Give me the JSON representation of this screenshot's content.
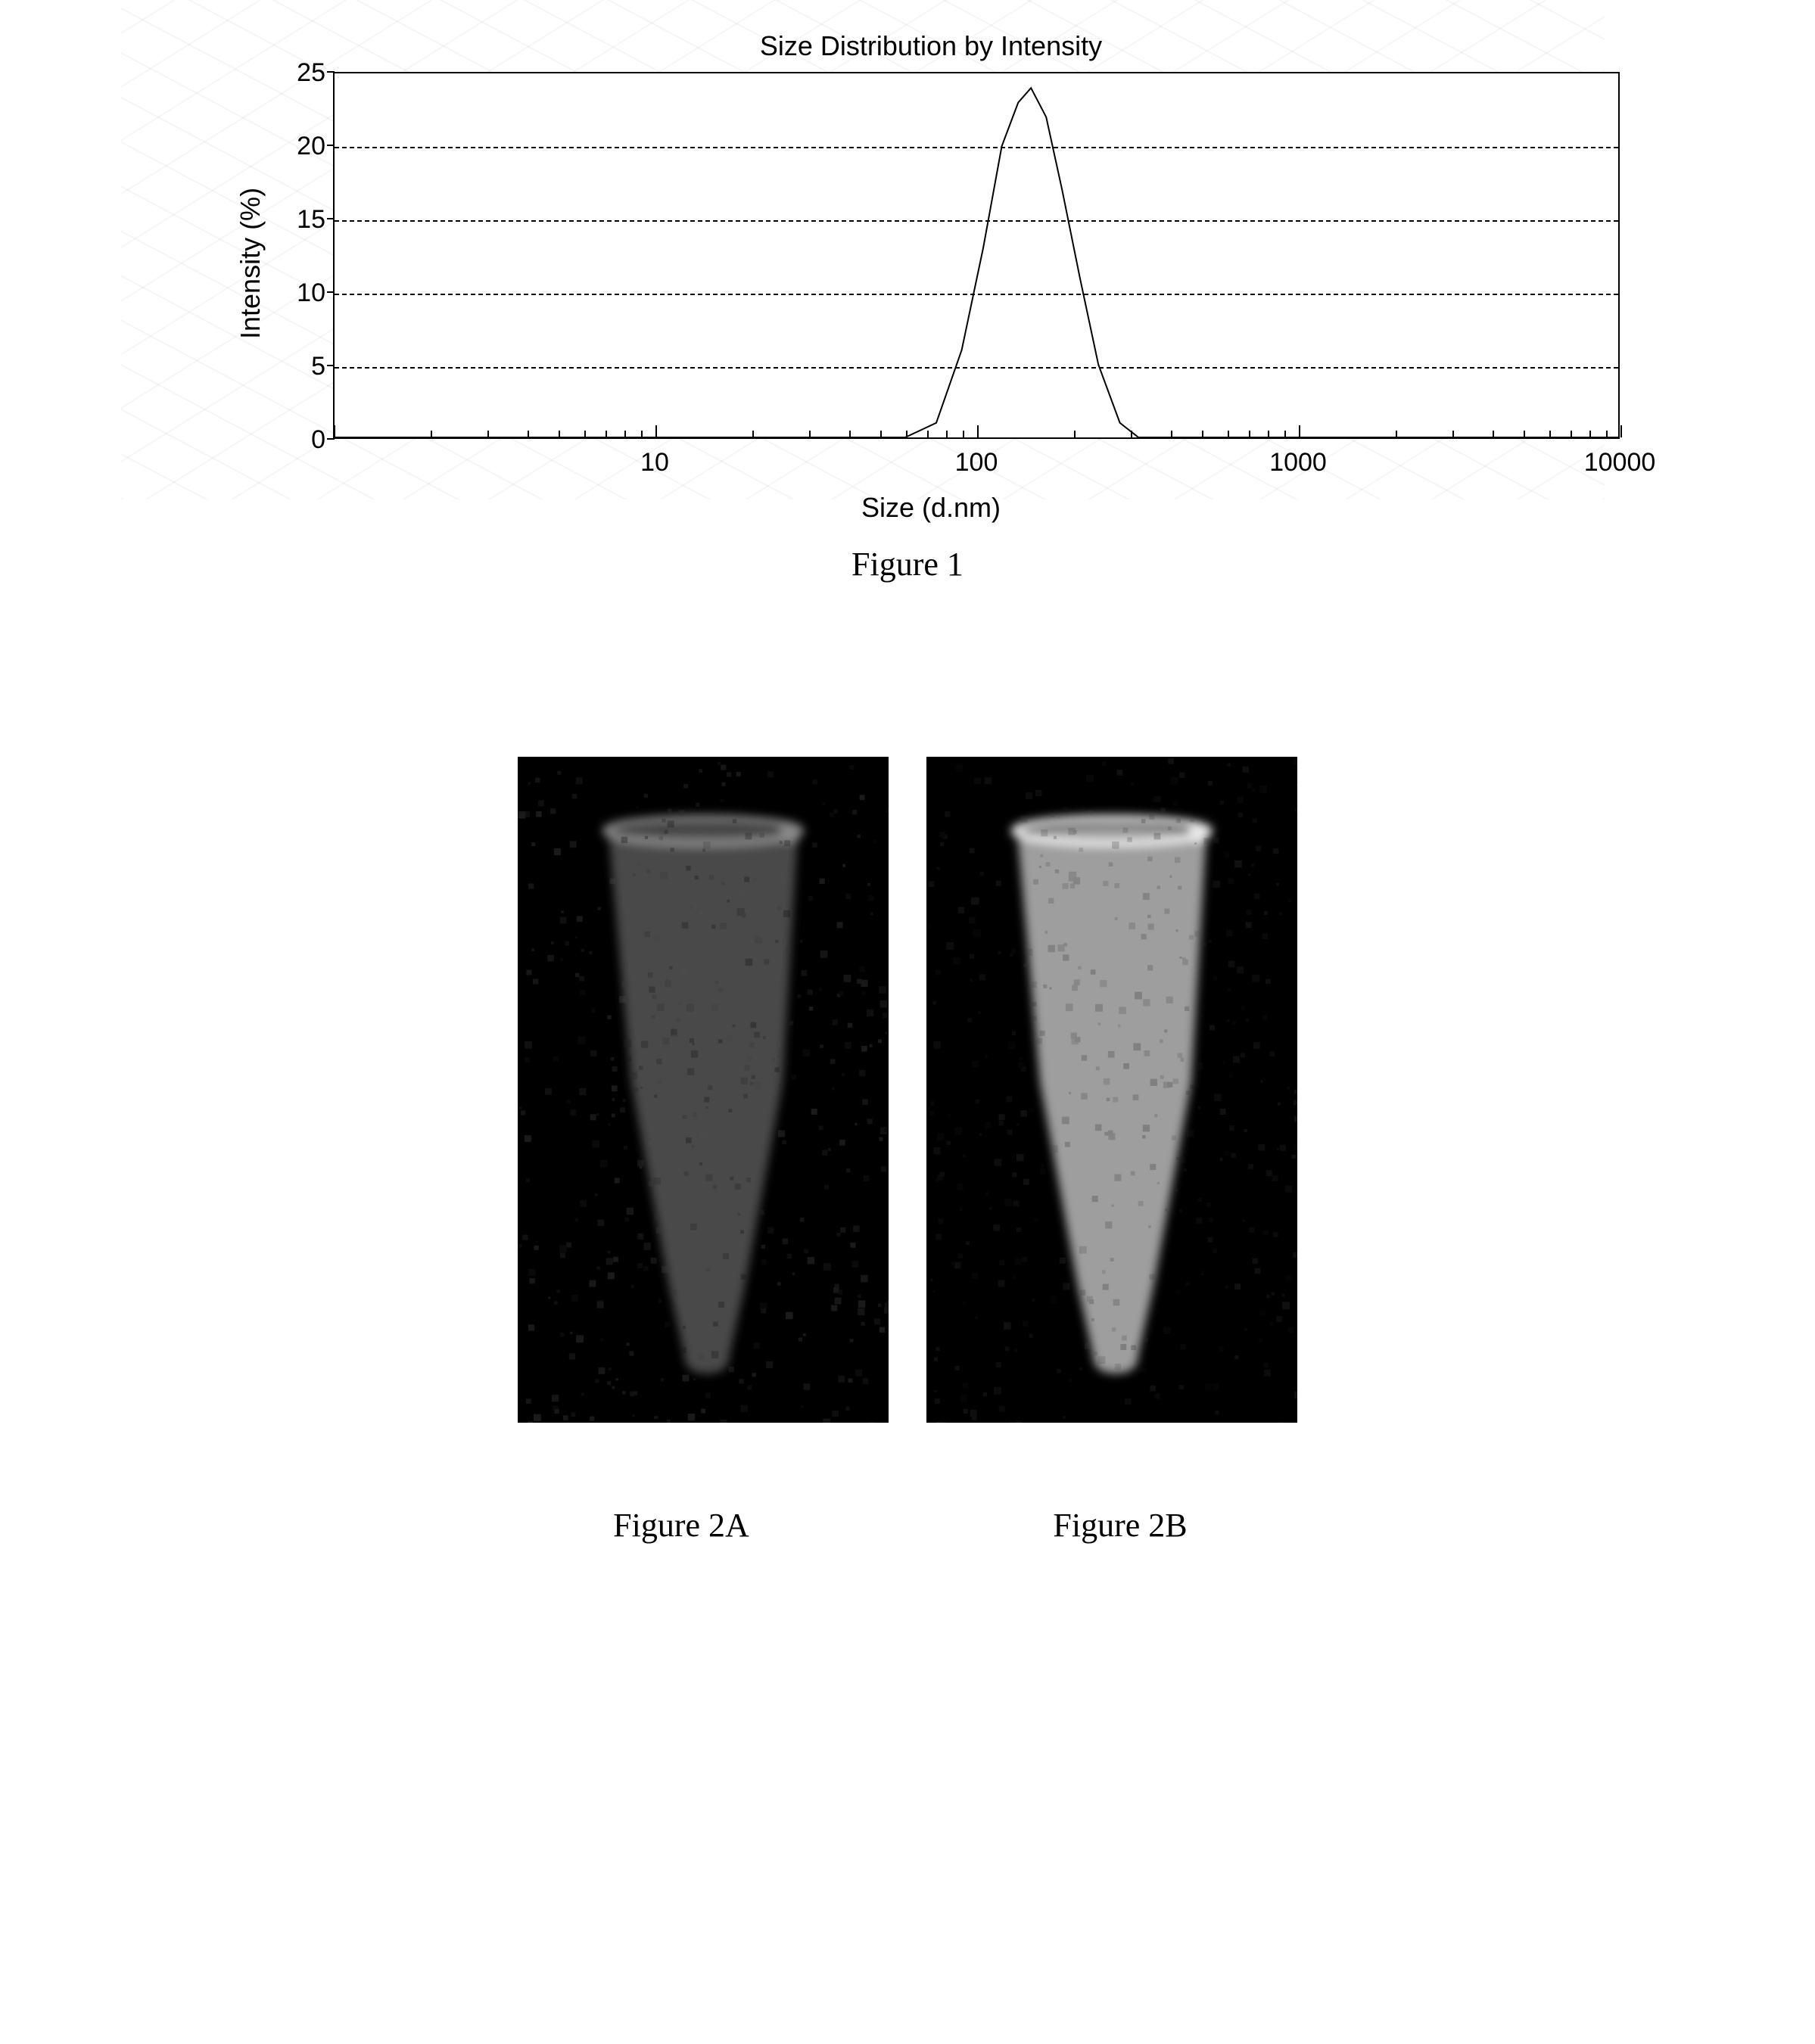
{
  "chart": {
    "type": "line",
    "title": "Size Distribution by Intensity",
    "title_fontsize": 36,
    "xlabel": "Size (d.nm)",
    "ylabel": "Intensity (%)",
    "label_fontsize": 36,
    "tick_fontsize": 34,
    "x_scale": "log",
    "xlim": [
      1,
      10000
    ],
    "x_ticks": [
      1,
      10,
      100,
      1000,
      10000
    ],
    "x_tick_labels": [
      "",
      "10",
      "100",
      "1000",
      "10000"
    ],
    "ylim": [
      0,
      25
    ],
    "y_ticks": [
      0,
      5,
      10,
      15,
      20,
      25
    ],
    "grid": true,
    "grid_style": "dashed",
    "grid_color": "#000000",
    "border_color": "#000000",
    "background_color": "#ffffff",
    "line_color": "#000000",
    "line_width": 2,
    "texture_background": true,
    "series": [
      {
        "x": 60,
        "y": 0
      },
      {
        "x": 75,
        "y": 1
      },
      {
        "x": 90,
        "y": 6
      },
      {
        "x": 105,
        "y": 13
      },
      {
        "x": 120,
        "y": 20
      },
      {
        "x": 135,
        "y": 23
      },
      {
        "x": 148,
        "y": 24
      },
      {
        "x": 165,
        "y": 22
      },
      {
        "x": 185,
        "y": 17
      },
      {
        "x": 210,
        "y": 11
      },
      {
        "x": 240,
        "y": 5
      },
      {
        "x": 280,
        "y": 1
      },
      {
        "x": 320,
        "y": 0
      }
    ]
  },
  "figure1_caption": "Figure 1",
  "figure2": {
    "panel_background": "#000000",
    "noise_texture": true,
    "panels": [
      {
        "id": "A",
        "caption": "Figure 2A",
        "tube_fill": "#4a4a4a",
        "tube_rim_highlight": "#888888",
        "tube_blur": 6,
        "noise_opacity": 0.35
      },
      {
        "id": "B",
        "caption": "Figure 2B",
        "tube_fill": "#9e9e9e",
        "tube_rim_highlight": "#e8e8e8",
        "tube_blur": 6,
        "noise_opacity": 0.22
      }
    ]
  }
}
